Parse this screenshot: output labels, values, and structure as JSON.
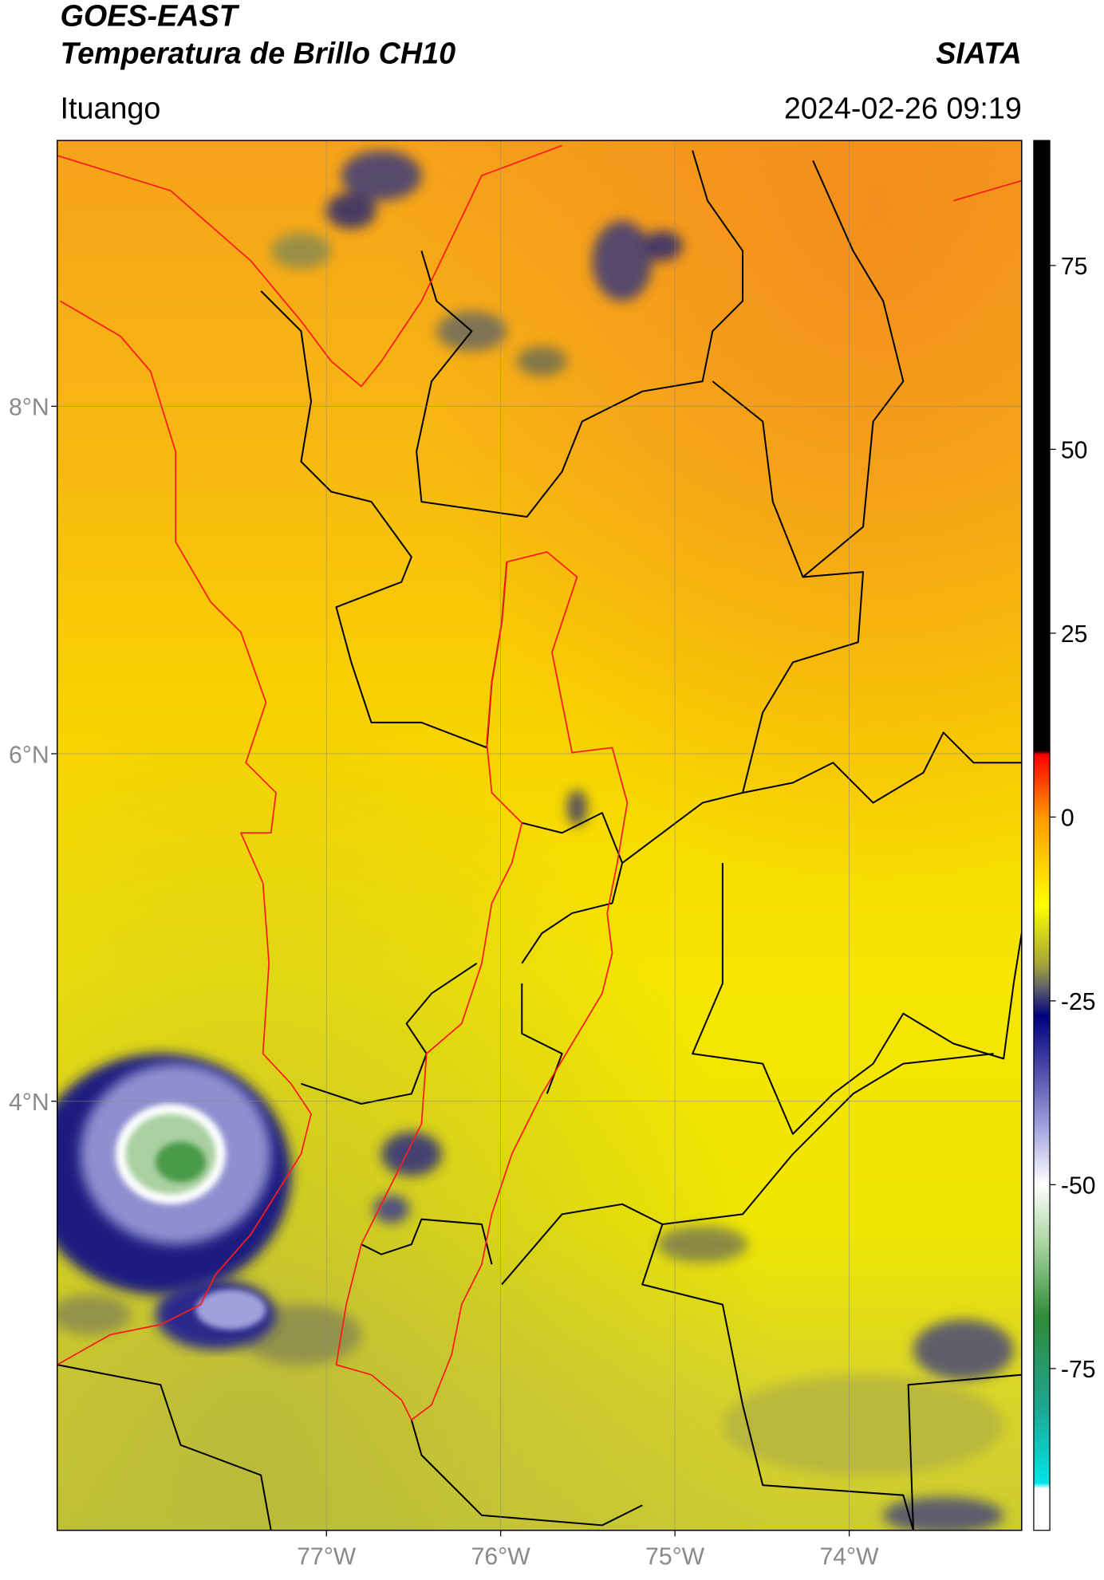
{
  "header": {
    "title": "GOES-EAST",
    "subtitle": "Temperatura de Brillo CH10",
    "brand": "SIATA",
    "location": "Ituango",
    "timestamp": "2024-02-26 09:19"
  },
  "map": {
    "xlim": [
      -78.545,
      -73.01
    ],
    "ylim": [
      1.53,
      9.53
    ],
    "grid": true,
    "xticks": [
      {
        "value": -77,
        "label": "77°W"
      },
      {
        "value": -76,
        "label": "76°W"
      },
      {
        "value": -75,
        "label": "75°W"
      },
      {
        "value": -74,
        "label": "74°W"
      }
    ],
    "yticks": [
      {
        "value": 8,
        "label": "8°N"
      },
      {
        "value": 6,
        "label": "6°N"
      },
      {
        "value": 4,
        "label": "4°N"
      }
    ]
  },
  "colorbar": {
    "lim": [
      -97,
      92
    ],
    "ticks": [
      75,
      50,
      25,
      0,
      -25,
      -50,
      -75
    ]
  }
}
